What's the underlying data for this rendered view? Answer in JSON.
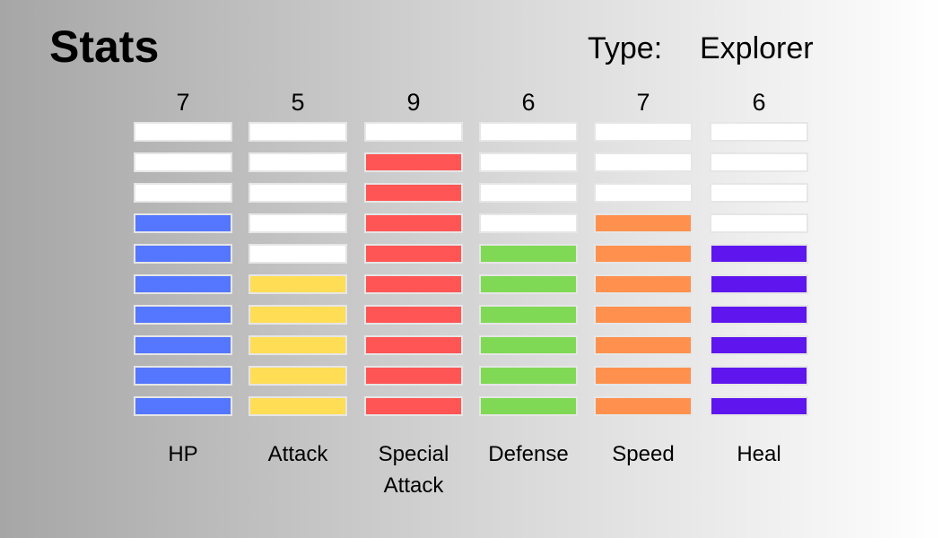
{
  "header": {
    "title": "Stats",
    "type_label": "Type:",
    "type_value": "Explorer"
  },
  "max_level": 10,
  "empty_color": "#ffffff",
  "stats": [
    {
      "label": "HP",
      "value": "7",
      "level": 7,
      "color": "#5577ff"
    },
    {
      "label": "Attack",
      "value": "5",
      "level": 5,
      "color": "#ffdd55"
    },
    {
      "label": "Special\nAttack",
      "value": "9",
      "level": 9,
      "color": "#ff5555"
    },
    {
      "label": "Defense",
      "value": "6",
      "level": 6,
      "color": "#80d955"
    },
    {
      "label": "Speed",
      "value": "7",
      "level": 7,
      "color": "#ff904d"
    },
    {
      "label": "Heal",
      "value": "6",
      "level": 6,
      "color": "#5f16ee"
    }
  ]
}
